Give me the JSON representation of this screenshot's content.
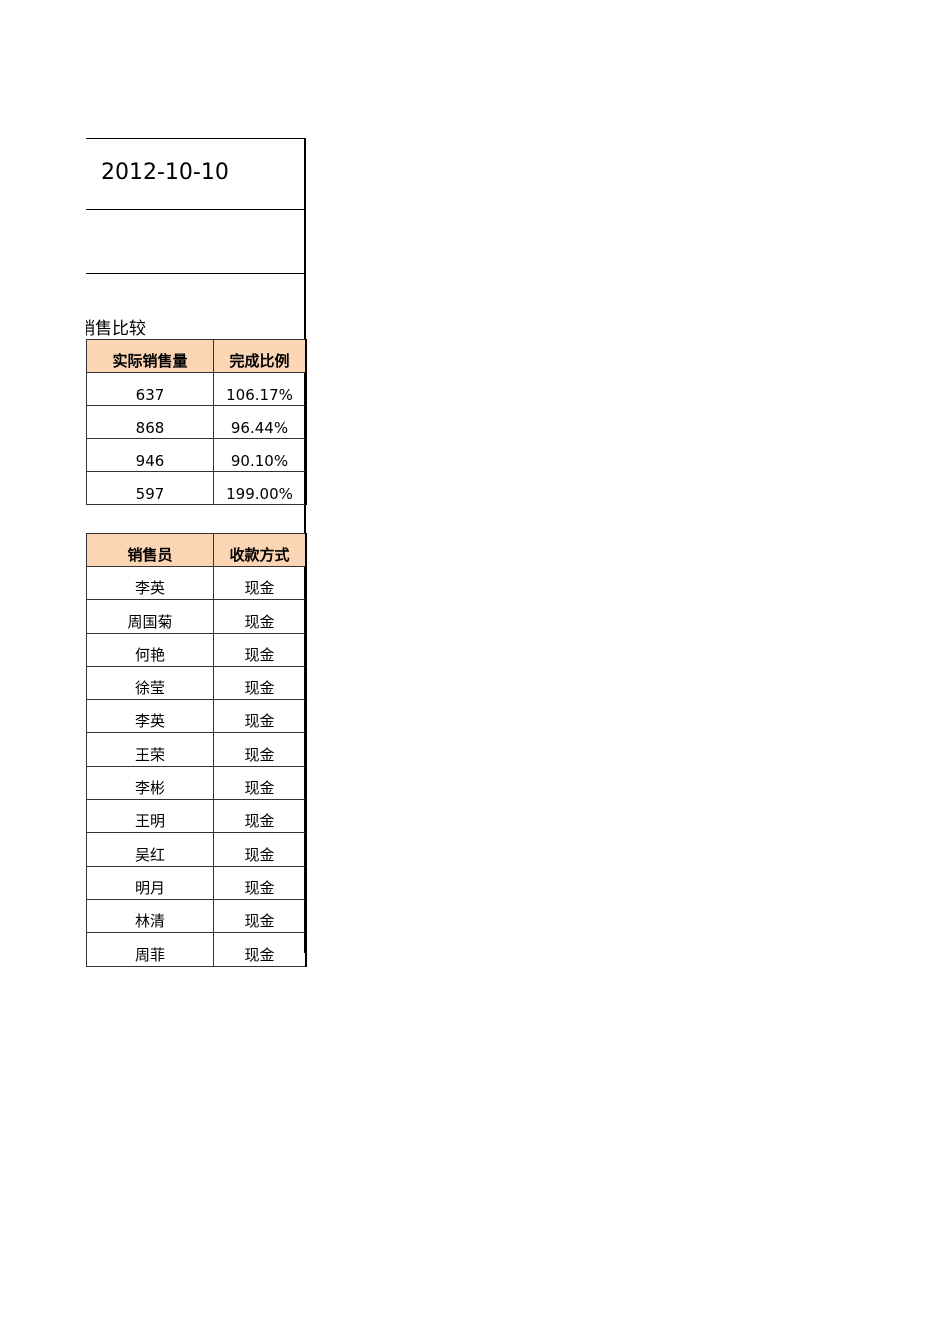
{
  "date": "2012-10-10",
  "section_title": "销售比较",
  "table1": {
    "headers": [
      "实际销售量",
      "完成比例"
    ],
    "rows": [
      [
        "637",
        "106.17%"
      ],
      [
        "868",
        "96.44%"
      ],
      [
        "946",
        "90.10%"
      ],
      [
        "597",
        "199.00%"
      ]
    ]
  },
  "table2": {
    "headers": [
      "销售员",
      "收款方式"
    ],
    "rows": [
      [
        "李英",
        "现金"
      ],
      [
        "周国菊",
        "现金"
      ],
      [
        "何艳",
        "现金"
      ],
      [
        "徐莹",
        "现金"
      ],
      [
        "李英",
        "现金"
      ],
      [
        "王荣",
        "现金"
      ],
      [
        "李彬",
        "现金"
      ],
      [
        "王明",
        "现金"
      ],
      [
        "吴红",
        "现金"
      ],
      [
        "明月",
        "现金"
      ],
      [
        "林清",
        "现金"
      ],
      [
        "周菲",
        "现金"
      ]
    ]
  },
  "colors": {
    "header_fill": "#FCD5B4",
    "border": "#000000"
  }
}
